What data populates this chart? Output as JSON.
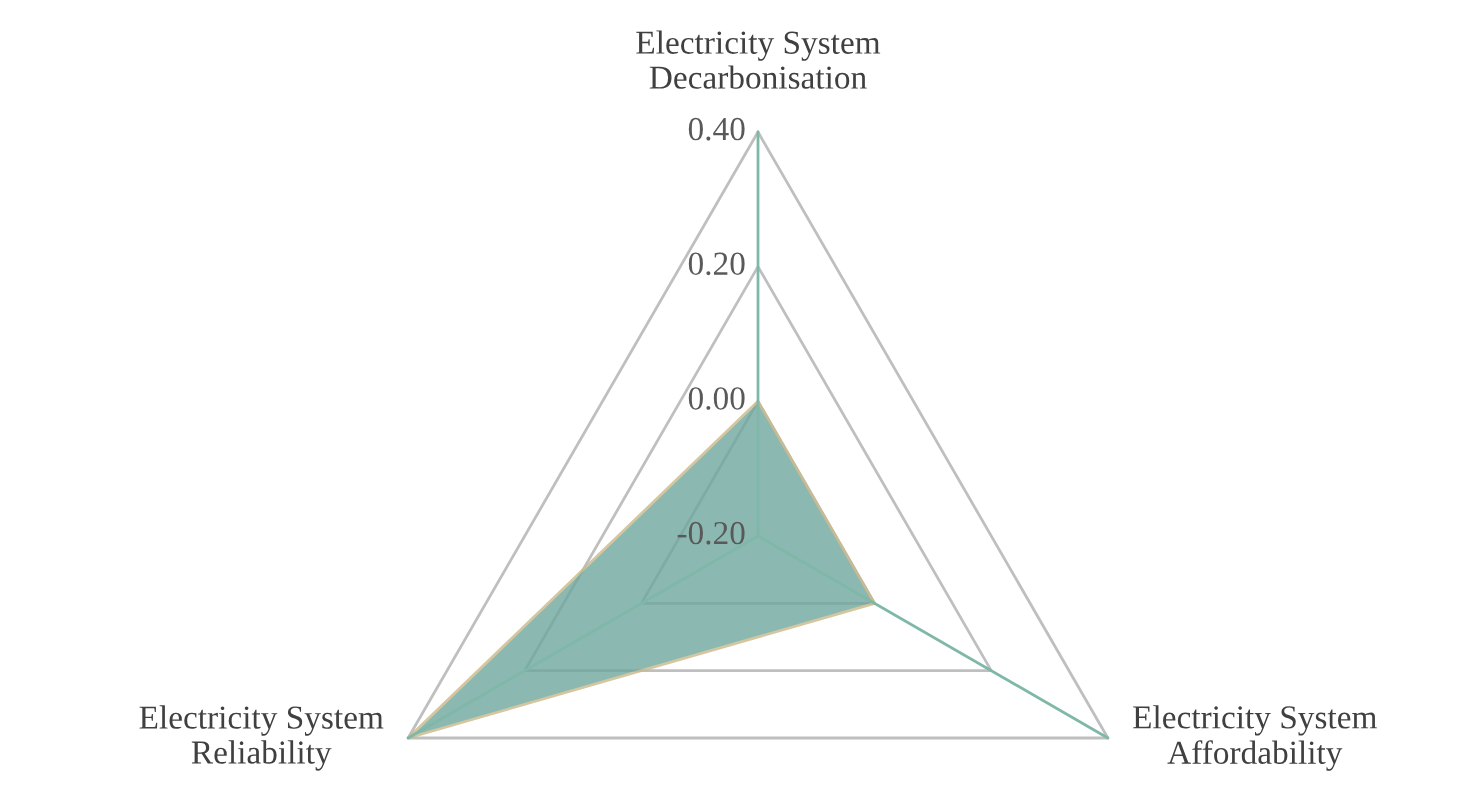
{
  "chart_data": {
    "type": "radar",
    "categories": [
      "Electricity System\nDecarbonisation",
      "Electricity System\nAffordability",
      "Electricity System\nReliability"
    ],
    "series": [
      {
        "color": "#6fa89e",
        "values": [
          0.0,
          0.0,
          0.4
        ]
      }
    ],
    "ylim": [
      -0.2,
      0.4
    ],
    "yticks": [
      {
        "value": -0.2,
        "label": "-0.20"
      },
      {
        "value": 0.0,
        "label": "0.00"
      },
      {
        "value": 0.2,
        "label": "0.20"
      },
      {
        "value": 0.4,
        "label": "0.40"
      }
    ],
    "grid": true
  }
}
